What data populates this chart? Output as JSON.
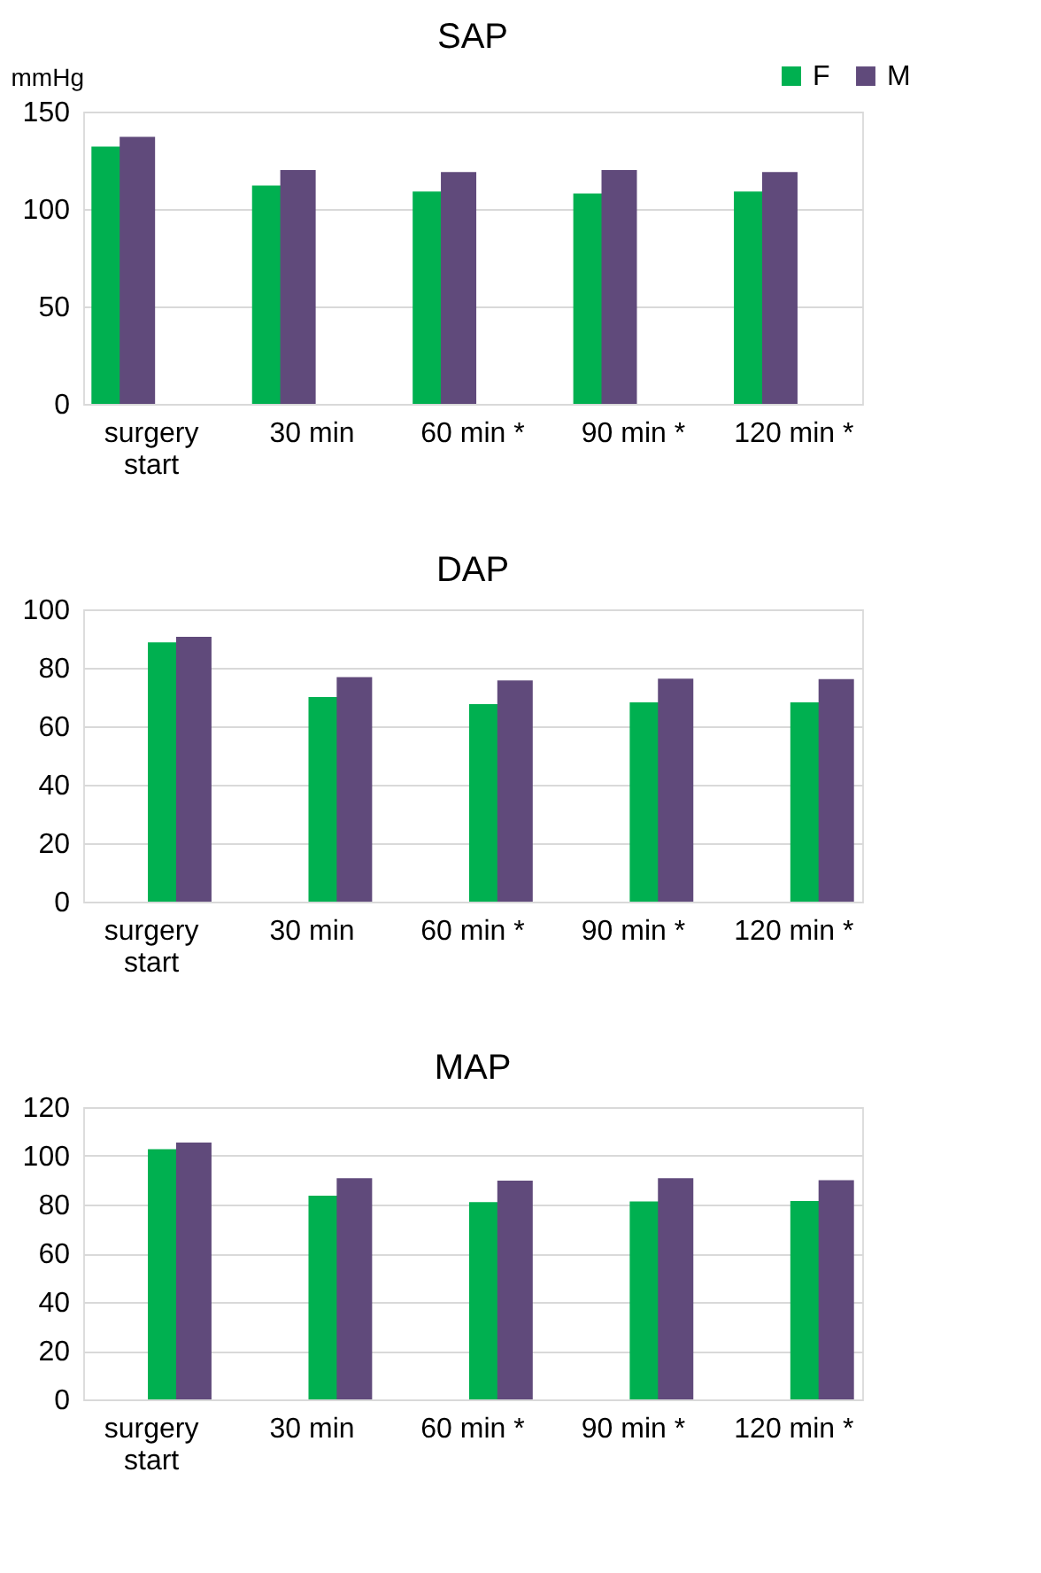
{
  "chart_data": [
    {
      "type": "bar",
      "title": "SAP",
      "ylabel": "mmHg",
      "categories": [
        "surgery start",
        "30 min",
        "60 min *",
        "90 min *",
        "120 min *"
      ],
      "series": [
        {
          "name": "F",
          "color": "#00b050",
          "values": [
            132,
            112,
            109,
            108,
            109
          ]
        },
        {
          "name": "M",
          "color": "#604a7b",
          "values": [
            137,
            120,
            119,
            120,
            119
          ]
        }
      ],
      "ylim": [
        0,
        150
      ],
      "yticks": [
        0,
        50,
        100,
        150
      ],
      "grid": "y",
      "legend": "top right"
    },
    {
      "type": "bar",
      "title": "DAP",
      "categories": [
        "surgery start",
        "30 min",
        "60 min *",
        "90 min *",
        "120 min *"
      ],
      "series": [
        {
          "color": "#00b050",
          "values": [
            88.7,
            70,
            67.6,
            68.2,
            68.2
          ]
        },
        {
          "color": "#604a7b",
          "values": [
            90.6,
            76.8,
            75.7,
            76.3,
            76.1
          ]
        }
      ],
      "ylim": [
        0,
        100
      ],
      "yticks": [
        0,
        20,
        40,
        60,
        80,
        100
      ],
      "grid": "y"
    },
    {
      "type": "bar",
      "title": "MAP",
      "categories": [
        "surgery start",
        "30 min",
        "60 min *",
        "90 min *",
        "120 min *"
      ],
      "series": [
        {
          "color": "#00b050",
          "values": [
            102.7,
            83.6,
            81,
            81.3,
            81.5
          ]
        },
        {
          "color": "#604a7b",
          "values": [
            105.5,
            90.8,
            89.8,
            90.8,
            90
          ]
        }
      ],
      "ylim": [
        0,
        120
      ],
      "yticks": [
        0,
        20,
        40,
        60,
        80,
        100,
        120
      ],
      "grid": "y"
    }
  ]
}
